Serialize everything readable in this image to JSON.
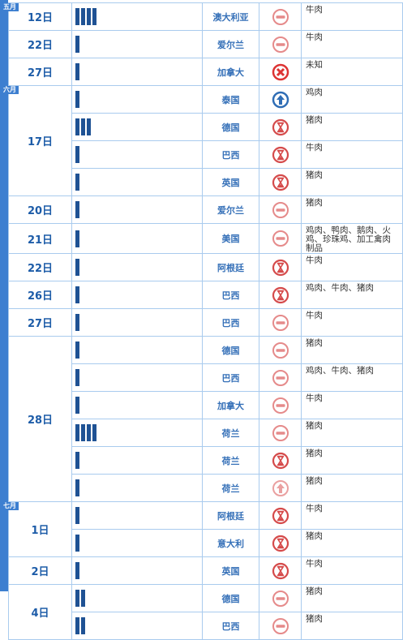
{
  "months": [
    {
      "label": "五月",
      "dates": [
        {
          "date": "12日",
          "rows": [
            {
              "bars": 4,
              "country": "澳大利亚",
              "product": "牛肉"
            }
          ]
        },
        {
          "date": "22日",
          "rows": [
            {
              "bars": 1,
              "country": "爱尔兰",
              "product": "牛肉"
            }
          ]
        },
        {
          "date": "27日",
          "rows": [
            {
              "bars": 1,
              "country": "加拿大",
              "product": "未知"
            }
          ]
        }
      ]
    },
    {
      "label": "六月",
      "dates": [
        {
          "date": "17日",
          "rows": [
            {
              "bars": 1,
              "country": "泰国",
              "product": "鸡肉"
            },
            {
              "bars": 3,
              "country": "德国",
              "product": "猪肉"
            },
            {
              "bars": 1,
              "country": "巴西",
              "product": "牛肉"
            },
            {
              "bars": 1,
              "country": "英国",
              "product": "猪肉"
            }
          ]
        },
        {
          "date": "20日",
          "rows": [
            {
              "bars": 1,
              "country": "爱尔兰",
              "product": "猪肉"
            }
          ]
        },
        {
          "date": "21日",
          "rows": [
            {
              "bars": 1,
              "country": "美国",
              "product": "鸡肉、鸭肉、鹅肉、火鸡、珍珠鸡、加工禽肉制品"
            }
          ]
        },
        {
          "date": "22日",
          "rows": [
            {
              "bars": 1,
              "country": "阿根廷",
              "product": "牛肉"
            }
          ]
        },
        {
          "date": "26日",
          "rows": [
            {
              "bars": 1,
              "country": "巴西",
              "product": "鸡肉、牛肉、猪肉"
            }
          ]
        },
        {
          "date": "27日",
          "rows": [
            {
              "bars": 1,
              "country": "巴西",
              "product": "牛肉"
            }
          ]
        },
        {
          "date": "28日",
          "rows": [
            {
              "bars": 1,
              "country": "德国",
              "product": "猪肉"
            },
            {
              "bars": 1,
              "country": "巴西",
              "product": "鸡肉、牛肉、猪肉"
            },
            {
              "bars": 1,
              "country": "加拿大",
              "product": "牛肉"
            },
            {
              "bars": 4,
              "country": "荷兰",
              "product": "猪肉"
            },
            {
              "bars": 1,
              "country": "荷兰",
              "product": "猪肉"
            },
            {
              "bars": 1,
              "country": "荷兰",
              "product": "猪肉"
            }
          ]
        }
      ]
    },
    {
      "label": "七月",
      "dates": [
        {
          "date": "1日",
          "rows": [
            {
              "bars": 1,
              "country": "阿根廷",
              "product": "牛肉"
            },
            {
              "bars": 1,
              "country": "意大利",
              "product": "猪肉"
            }
          ]
        },
        {
          "date": "2日",
          "rows": [
            {
              "bars": 1,
              "country": "英国",
              "product": "牛肉"
            }
          ]
        },
        {
          "date": "4日",
          "rows": [
            {
              "bars": 2,
              "country": "德国",
              "product": "猪肉"
            },
            {
              "bars": 2,
              "country": "巴西",
              "product": "猪肉"
            }
          ]
        }
      ]
    }
  ]
}
